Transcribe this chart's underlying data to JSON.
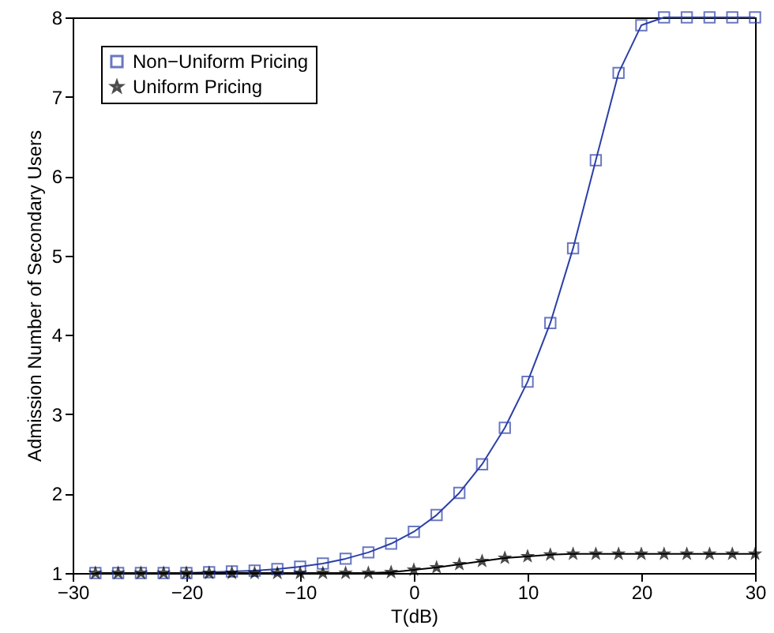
{
  "chart_data": {
    "type": "line",
    "xlabel": "T(dB)",
    "ylabel": "Admission Number of Secondary Users",
    "x": [
      -28,
      -26,
      -24,
      -22,
      -20,
      -18,
      -16,
      -14,
      -12,
      -10,
      -8,
      -6,
      -4,
      -2,
      0,
      2,
      4,
      6,
      8,
      10,
      12,
      14,
      16,
      18,
      20,
      22,
      24,
      26,
      28,
      30
    ],
    "series": [
      {
        "name": "Non−Uniform Pricing",
        "color": "#2b3fa8",
        "marker": "square",
        "values": [
          1,
          1,
          1,
          1,
          1,
          1.01,
          1.02,
          1.03,
          1.05,
          1.08,
          1.12,
          1.18,
          1.26,
          1.37,
          1.52,
          1.73,
          2.01,
          2.37,
          2.83,
          3.41,
          4.15,
          5.09,
          6.2,
          7.3,
          7.9,
          8,
          8,
          8,
          8,
          8
        ]
      },
      {
        "name": "Uniform Pricing",
        "color": "#000000",
        "marker": "star",
        "values": [
          1,
          1,
          1,
          1,
          1,
          1,
          1,
          1,
          1,
          1,
          1,
          1,
          1,
          1.01,
          1.04,
          1.07,
          1.11,
          1.15,
          1.19,
          1.21,
          1.23,
          1.24,
          1.24,
          1.24,
          1.24,
          1.24,
          1.24,
          1.24,
          1.24,
          1.24
        ]
      }
    ],
    "xlim": [
      -30,
      30
    ],
    "xticks": [
      -30,
      -20,
      -10,
      0,
      10,
      20,
      30
    ],
    "ylim": [
      1,
      8
    ],
    "yticks": [
      1,
      2,
      3,
      4,
      5,
      6,
      7,
      8
    ],
    "grid": false,
    "legend": "top left",
    "line_style": "solid"
  }
}
